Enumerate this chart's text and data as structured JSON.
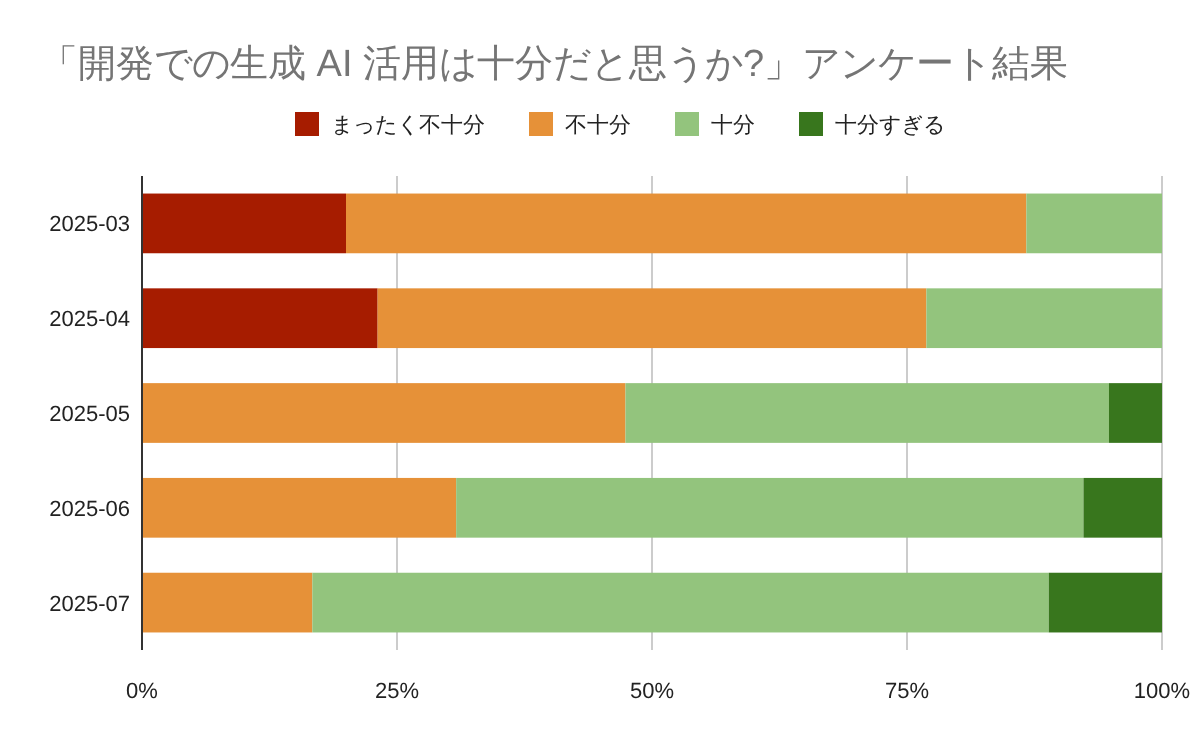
{
  "chart_data": {
    "type": "bar",
    "orientation": "horizontal",
    "stacked": true,
    "title": "「開発での生成 AI 活用は十分だと思うか?」アンケート結果",
    "categories": [
      "2025-03",
      "2025-04",
      "2025-05",
      "2025-06",
      "2025-07"
    ],
    "series": [
      {
        "name": "まったく不十分",
        "color": "#a61c00",
        "values": [
          20,
          23.1,
          0,
          0,
          0
        ]
      },
      {
        "name": "不十分",
        "color": "#e69138",
        "values": [
          66.7,
          53.8,
          47.4,
          30.8,
          16.7
        ]
      },
      {
        "name": "十分",
        "color": "#93c47d",
        "values": [
          13.3,
          23.1,
          47.4,
          61.5,
          72.2
        ]
      },
      {
        "name": "十分すぎる",
        "color": "#38761d",
        "values": [
          0,
          0,
          5.2,
          7.7,
          11.1
        ]
      }
    ],
    "xlim": [
      0,
      100
    ],
    "xticks": [
      {
        "value": 0,
        "label": "0%"
      },
      {
        "value": 25,
        "label": "25%"
      },
      {
        "value": 50,
        "label": "50%"
      },
      {
        "value": 75,
        "label": "75%"
      },
      {
        "value": 100,
        "label": "100%"
      }
    ],
    "grid": "x",
    "legend": "top"
  }
}
